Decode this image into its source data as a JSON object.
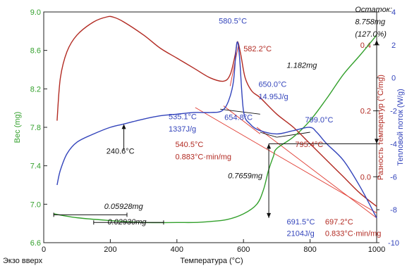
{
  "chart_data": {
    "type": "line",
    "xlabel": "Температура (°С)",
    "footer_left": "Экзо вверх",
    "x_axis": {
      "min": 0,
      "max": 1000,
      "ticks": [
        0,
        200,
        400,
        600,
        800,
        1000
      ]
    },
    "y_left": {
      "label": "Вес (mg)",
      "min": 6.6,
      "max": 9.0,
      "ticks": [
        6.6,
        7.0,
        7.4,
        7.8,
        8.2,
        8.6,
        9.0
      ],
      "tick_labels": [
        "6.6",
        "7.0",
        "7.4",
        "7.8",
        "8.2",
        "8.6",
        "9.0"
      ]
    },
    "y_right_inner": {
      "label": "Разность температур (°С/mg)",
      "min": -0.2,
      "max": 0.5,
      "ticks": [
        0.0,
        0.2,
        0.4
      ],
      "tick_labels": [
        "0.0",
        "0.2",
        "0.4"
      ]
    },
    "y_right_outer": {
      "label": "Тепловой поток (W/g)",
      "min": -10,
      "max": 4,
      "ticks": [
        -10,
        -8,
        -6,
        -4,
        -2,
        0,
        2,
        4
      ],
      "tick_labels": [
        "-10",
        "-8",
        "-6",
        "-4",
        "-2",
        "0",
        "2",
        "4"
      ]
    },
    "colors": {
      "weight": "#33a02c",
      "dta": "#b22a22",
      "heat": "#3344bb",
      "annot_black": "#111111"
    },
    "series": [
      {
        "key": "weight",
        "axis": "left",
        "points": [
          [
            30,
            6.9
          ],
          [
            100,
            6.86
          ],
          [
            200,
            6.83
          ],
          [
            300,
            6.81
          ],
          [
            400,
            6.81
          ],
          [
            450,
            6.81
          ],
          [
            500,
            6.82
          ],
          [
            550,
            6.84
          ],
          [
            600,
            6.9
          ],
          [
            640,
            7.0
          ],
          [
            660,
            7.15
          ],
          [
            675,
            7.35
          ],
          [
            690,
            7.5
          ],
          [
            700,
            7.58
          ],
          [
            750,
            7.7
          ],
          [
            800,
            7.87
          ],
          [
            850,
            8.1
          ],
          [
            900,
            8.35
          ],
          [
            950,
            8.55
          ],
          [
            1000,
            8.76
          ]
        ]
      },
      {
        "key": "dta",
        "axis": "right_inner",
        "points": [
          [
            40,
            0.17
          ],
          [
            50,
            0.3
          ],
          [
            70,
            0.38
          ],
          [
            100,
            0.43
          ],
          [
            150,
            0.47
          ],
          [
            190,
            0.485
          ],
          [
            210,
            0.484
          ],
          [
            240,
            0.47
          ],
          [
            300,
            0.43
          ],
          [
            350,
            0.39
          ],
          [
            400,
            0.36
          ],
          [
            450,
            0.33
          ],
          [
            500,
            0.3
          ],
          [
            540,
            0.29
          ],
          [
            560,
            0.31
          ],
          [
            575,
            0.37
          ],
          [
            582,
            0.41
          ],
          [
            592,
            0.37
          ],
          [
            605,
            0.3
          ],
          [
            625,
            0.26
          ],
          [
            650,
            0.24
          ],
          [
            700,
            0.19
          ],
          [
            750,
            0.15
          ],
          [
            800,
            0.1
          ],
          [
            850,
            0.05
          ],
          [
            900,
            0.0
          ],
          [
            950,
            -0.05
          ],
          [
            1000,
            -0.09
          ]
        ]
      },
      {
        "key": "heat",
        "axis": "right_outer",
        "points": [
          [
            40,
            -6.5
          ],
          [
            50,
            -5.6
          ],
          [
            70,
            -4.6
          ],
          [
            100,
            -3.9
          ],
          [
            150,
            -3.4
          ],
          [
            200,
            -3.0
          ],
          [
            240,
            -2.8
          ],
          [
            300,
            -2.5
          ],
          [
            350,
            -2.3
          ],
          [
            400,
            -2.2
          ],
          [
            450,
            -2.1
          ],
          [
            500,
            -2.1
          ],
          [
            535,
            -2.0
          ],
          [
            555,
            -1.4
          ],
          [
            570,
            -0.2
          ],
          [
            580,
            2.1
          ],
          [
            588,
            1.3
          ],
          [
            600,
            -2.0
          ],
          [
            620,
            -2.8
          ],
          [
            650,
            -3.2
          ],
          [
            700,
            -3.4
          ],
          [
            750,
            -3.2
          ],
          [
            799,
            -3.0
          ],
          [
            820,
            -3.3
          ],
          [
            850,
            -4.0
          ],
          [
            900,
            -5.0
          ],
          [
            950,
            -6.6
          ],
          [
            1000,
            -8.5
          ]
        ]
      }
    ],
    "tangent_lines": [
      {
        "axis": "right_outer",
        "color": "#e03a30",
        "points": [
          [
            455,
            -1.8
          ],
          [
            1000,
            -8.2
          ]
        ]
      },
      {
        "axis": "right_outer",
        "color": "#e03a30",
        "points": [
          [
            540,
            -1.7
          ],
          [
            650,
            -3.4
          ]
        ]
      },
      {
        "axis": "right_outer",
        "color": "#e03a30",
        "points": [
          [
            560,
            -0.5
          ],
          [
            585,
            2.0
          ]
        ]
      },
      {
        "axis": "right_outer",
        "color": "#e03a30",
        "points": [
          [
            640,
            -3.0
          ],
          [
            1000,
            -8.5
          ]
        ]
      },
      {
        "axis": "right_outer",
        "color": "#111111",
        "points": [
          [
            530,
            -1.9
          ],
          [
            650,
            -2.2
          ]
        ]
      },
      {
        "axis": "right_outer",
        "color": "#111111",
        "points": [
          [
            700,
            -3.6
          ],
          [
            800,
            -3.3
          ]
        ]
      },
      {
        "axis": "right_outer",
        "color": "#111111",
        "points": [
          [
            650,
            -3.3
          ],
          [
            700,
            -3.6
          ]
        ]
      }
    ],
    "annotations": [
      {
        "text": "580.5°C",
        "color": "#3344bb",
        "x": 568,
        "y_outer": 3.3,
        "anchor": "middle",
        "style": "normal"
      },
      {
        "text": "582.2°C",
        "color": "#b22a22",
        "x": 600,
        "y_outer": 1.6,
        "anchor": "start",
        "style": "normal"
      },
      {
        "text": "Остаток:",
        "color": "#111111",
        "x": 935,
        "y_outer": 4.0,
        "anchor": "start",
        "style": "italic"
      },
      {
        "text": "8.758mg",
        "color": "#111111",
        "x": 935,
        "y_outer": 3.25,
        "anchor": "start",
        "style": "italic"
      },
      {
        "text": "(127.0%)",
        "color": "#111111",
        "x": 935,
        "y_outer": 2.5,
        "anchor": "start",
        "style": "italic"
      },
      {
        "text": "1.182mg",
        "color": "#111111",
        "x": 730,
        "y_outer": 0.6,
        "anchor": "start",
        "style": "italic"
      },
      {
        "text": "650.0°C",
        "color": "#3344bb",
        "x": 645,
        "y_outer": -0.55,
        "anchor": "start",
        "style": "normal"
      },
      {
        "text": "14.95J/g",
        "color": "#3344bb",
        "x": 645,
        "y_outer": -1.3,
        "anchor": "start",
        "style": "normal"
      },
      {
        "text": "535.1°C",
        "color": "#3344bb",
        "x": 375,
        "y_outer": -2.5,
        "anchor": "start",
        "style": "normal"
      },
      {
        "text": "1337J/g",
        "color": "#3344bb",
        "x": 375,
        "y_outer": -3.25,
        "anchor": "start",
        "style": "normal"
      },
      {
        "text": "654.8°C",
        "color": "#3344bb",
        "x": 585,
        "y_outer": -2.55,
        "anchor": "middle",
        "style": "normal"
      },
      {
        "text": "799.0°C",
        "color": "#3344bb",
        "x": 785,
        "y_outer": -2.7,
        "anchor": "start",
        "style": "normal"
      },
      {
        "text": "240.6°C",
        "color": "#111111",
        "x": 188,
        "y_outer": -4.6,
        "anchor": "start",
        "style": "normal"
      },
      {
        "text": "540.5°C",
        "color": "#b22a22",
        "x": 395,
        "y_outer": -4.2,
        "anchor": "start",
        "style": "normal"
      },
      {
        "text": "0.883°C·min/mg",
        "color": "#b22a22",
        "x": 395,
        "y_outer": -4.95,
        "anchor": "start",
        "style": "normal"
      },
      {
        "text": "795.4°C",
        "color": "#b22a22",
        "x": 755,
        "y_outer": -4.2,
        "anchor": "start",
        "style": "normal"
      },
      {
        "text": "0.7659mg",
        "color": "#111111",
        "x": 605,
        "y_outer": -6.1,
        "anchor": "middle",
        "style": "italic"
      },
      {
        "text": "0.05928mg",
        "color": "#111111",
        "x": 240,
        "y_outer": -7.95,
        "anchor": "middle",
        "style": "italic"
      },
      {
        "text": "0.02930mg",
        "color": "#111111",
        "x": 250,
        "y_outer": -8.9,
        "anchor": "middle",
        "style": "italic"
      },
      {
        "text": "691.5°C",
        "color": "#3344bb",
        "x": 730,
        "y_outer": -8.9,
        "anchor": "start",
        "style": "normal"
      },
      {
        "text": "2104J/g",
        "color": "#3344bb",
        "x": 730,
        "y_outer": -9.6,
        "anchor": "start",
        "style": "normal"
      },
      {
        "text": "697.2°C",
        "color": "#b22a22",
        "x": 845,
        "y_outer": -8.9,
        "anchor": "start",
        "style": "normal"
      },
      {
        "text": "0.833°C·min/mg",
        "color": "#b22a22",
        "x": 845,
        "y_outer": -9.6,
        "anchor": "start",
        "style": "normal"
      }
    ],
    "markers": [
      {
        "x": 240.6,
        "y_outer": -2.8,
        "label_end_outer": -4.4,
        "color": "#111111",
        "type": "arrow-up"
      },
      {
        "x": 676,
        "y_outer": -4.0,
        "y_end_outer": -8.5,
        "color": "#111111",
        "type": "double-vertical"
      },
      {
        "x": 1000,
        "y_outer": 2.3,
        "y_end_outer": -4.0,
        "color": "#111111",
        "type": "double-vertical"
      }
    ]
  }
}
